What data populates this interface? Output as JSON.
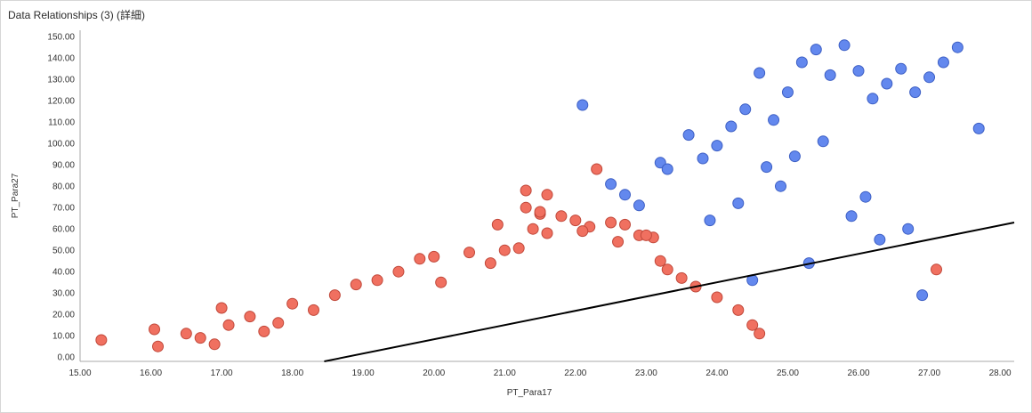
{
  "panel": {
    "title": "Data Relationships (3) (詳細)"
  },
  "chart_data": {
    "type": "scatter",
    "title": "Data Relationships (3) (詳細)",
    "xlabel": "PT_Para17",
    "ylabel": "PT_Para27",
    "xlim": [
      15.0,
      28.2
    ],
    "ylim": [
      -2.0,
      153.0
    ],
    "x_ticks": [
      "15.00",
      "16.00",
      "17.00",
      "18.00",
      "19.00",
      "20.00",
      "21.00",
      "22.00",
      "23.00",
      "24.00",
      "25.00",
      "26.00",
      "27.00",
      "28.00"
    ],
    "y_ticks": [
      "0.00",
      "10.00",
      "20.00",
      "30.00",
      "40.00",
      "50.00",
      "60.00",
      "70.00",
      "80.00",
      "90.00",
      "100.00",
      "110.00",
      "120.00",
      "130.00",
      "140.00",
      "150.00"
    ],
    "grid": false,
    "legend": "none",
    "colors": {
      "red_series": "#f07060",
      "blue_series": "#6388ee",
      "trend_line": "#000000"
    },
    "trend_line": {
      "x": [
        18.0,
        28.2
      ],
      "y": [
        -5.0,
        63.0
      ]
    },
    "series": [
      {
        "color": "#f07060",
        "x": [
          15.3,
          16.1,
          16.05,
          16.5,
          16.7,
          17.0,
          17.1,
          16.9,
          17.4,
          17.6,
          17.8,
          18.0,
          18.3,
          18.6,
          18.9,
          19.2,
          19.5,
          19.8,
          20.0,
          20.1,
          20.5,
          20.8,
          21.0,
          21.2,
          21.3,
          21.5,
          21.6,
          21.8,
          22.0,
          22.2,
          22.3,
          22.5,
          22.7,
          22.9,
          23.1,
          23.3,
          23.5,
          23.7,
          24.0,
          24.3,
          24.5,
          24.6,
          27.1,
          21.6,
          22.1,
          21.3,
          20.9,
          21.5,
          22.6,
          21.4,
          23.2,
          23.0
        ],
        "y": [
          8,
          5,
          13,
          11,
          9,
          23,
          15,
          6,
          19,
          12,
          16,
          25,
          22,
          29,
          34,
          36,
          40,
          46,
          47,
          35,
          49,
          44,
          50,
          51,
          78,
          67,
          76,
          66,
          64,
          61,
          88,
          63,
          62,
          57,
          56,
          41,
          37,
          33,
          28,
          22,
          15,
          11,
          41,
          58,
          59,
          70,
          62,
          68,
          54,
          60,
          45,
          57
        ]
      },
      {
        "color": "#6388ee",
        "x": [
          22.1,
          22.5,
          22.7,
          22.9,
          23.2,
          23.3,
          23.6,
          23.8,
          24.0,
          24.2,
          24.4,
          24.6,
          24.8,
          25.0,
          25.2,
          25.4,
          25.6,
          25.8,
          26.0,
          26.2,
          26.4,
          26.6,
          26.8,
          27.0,
          27.2,
          27.4,
          27.7,
          25.5,
          25.1,
          24.7,
          24.9,
          26.1,
          26.7,
          25.9,
          24.3,
          23.9,
          26.3,
          25.3,
          24.5,
          26.9
        ],
        "y": [
          118,
          81,
          76,
          71,
          91,
          88,
          104,
          93,
          99,
          108,
          116,
          133,
          111,
          124,
          138,
          144,
          132,
          146,
          134,
          121,
          128,
          135,
          124,
          131,
          138,
          145,
          107,
          101,
          94,
          89,
          80,
          75,
          60,
          66,
          72,
          64,
          55,
          44,
          36,
          29
        ]
      }
    ]
  }
}
